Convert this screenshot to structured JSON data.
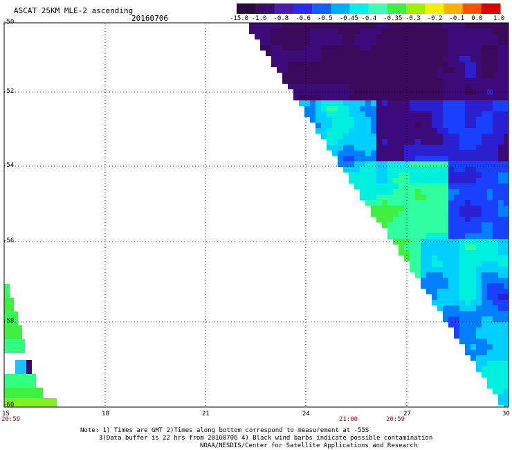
{
  "header": {
    "title": "ASCAT 25KM MLE-2 ascending",
    "date": "20160706"
  },
  "colorbar": {
    "labels": [
      "-15.0",
      "-1.0",
      "-0.8",
      "-0.6",
      "-0.5",
      "-0.45",
      "-0.4",
      "-0.35",
      "-0.3",
      "-0.2",
      "-0.1",
      "0.0",
      "1.0"
    ],
    "colors": [
      "#2a0a3c",
      "#3d0a6a",
      "#4b1ab0",
      "#2a2af0",
      "#1060ff",
      "#00b0ff",
      "#00f0f0",
      "#40ffb0",
      "#40f040",
      "#a0f000",
      "#f0f000",
      "#ffb000",
      "#ff5000",
      "#e00000"
    ]
  },
  "map": {
    "y_ticks": [
      "-50",
      "-52",
      "-54",
      "-56",
      "-58",
      "-60"
    ],
    "x_ticks": [
      "15",
      "18",
      "21",
      "24",
      "27",
      "30"
    ],
    "time_labels": [
      "20:59",
      "21:00",
      "20:59"
    ]
  },
  "notes": {
    "line1": "Note: 1) Times are GMT 2)Times along bottom correspond to measurement at -55S",
    "line2": "3)Data buffer is 22 hrs from 20160706 4) Black wind barbs indicate possible contamination",
    "line3": "NOAA/NESDIS/Center for Satellite Applications and Research"
  }
}
